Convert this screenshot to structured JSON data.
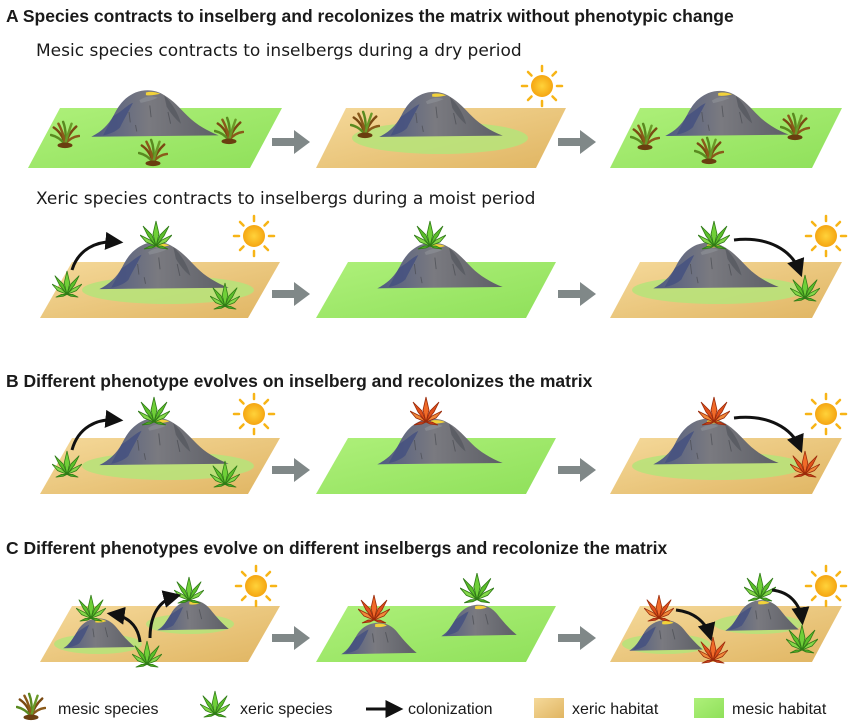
{
  "sections": {
    "a_title": "A Species contracts to inselberg and recolonizes the matrix without phenotypic change",
    "a_sub1": "Mesic species contracts to inselbergs during a dry period",
    "a_sub2": "Xeric species contracts to inselbergs during a moist period",
    "b_title": "B Different phenotype evolves on inselberg and recolonizes the matrix",
    "c_title": "C Different phenotypes evolve on different inselbergs and recolonize the matrix"
  },
  "legend": {
    "mesic_species": "mesic species",
    "xeric_species": "xeric species",
    "colonization": "colonization",
    "xeric_habitat": "xeric habitat",
    "mesic_habitat": "mesic habitat"
  },
  "colors": {
    "mesic_habitat": "#9ee86a",
    "xeric_habitat": "#e8c47a",
    "inselberg": "#6e7078",
    "sun": "#f7b416",
    "arrow": "#808888",
    "mesic_plant": "#8a5a1a",
    "xeric_plant": "#5cbf2a",
    "derived_plant": "#e0501a"
  },
  "icons": {
    "sun": "sun-icon",
    "mesic": "mesic-plant-icon",
    "xeric": "xeric-plant-icon",
    "derived": "derived-plant-icon",
    "inselberg": "inselberg-icon"
  }
}
